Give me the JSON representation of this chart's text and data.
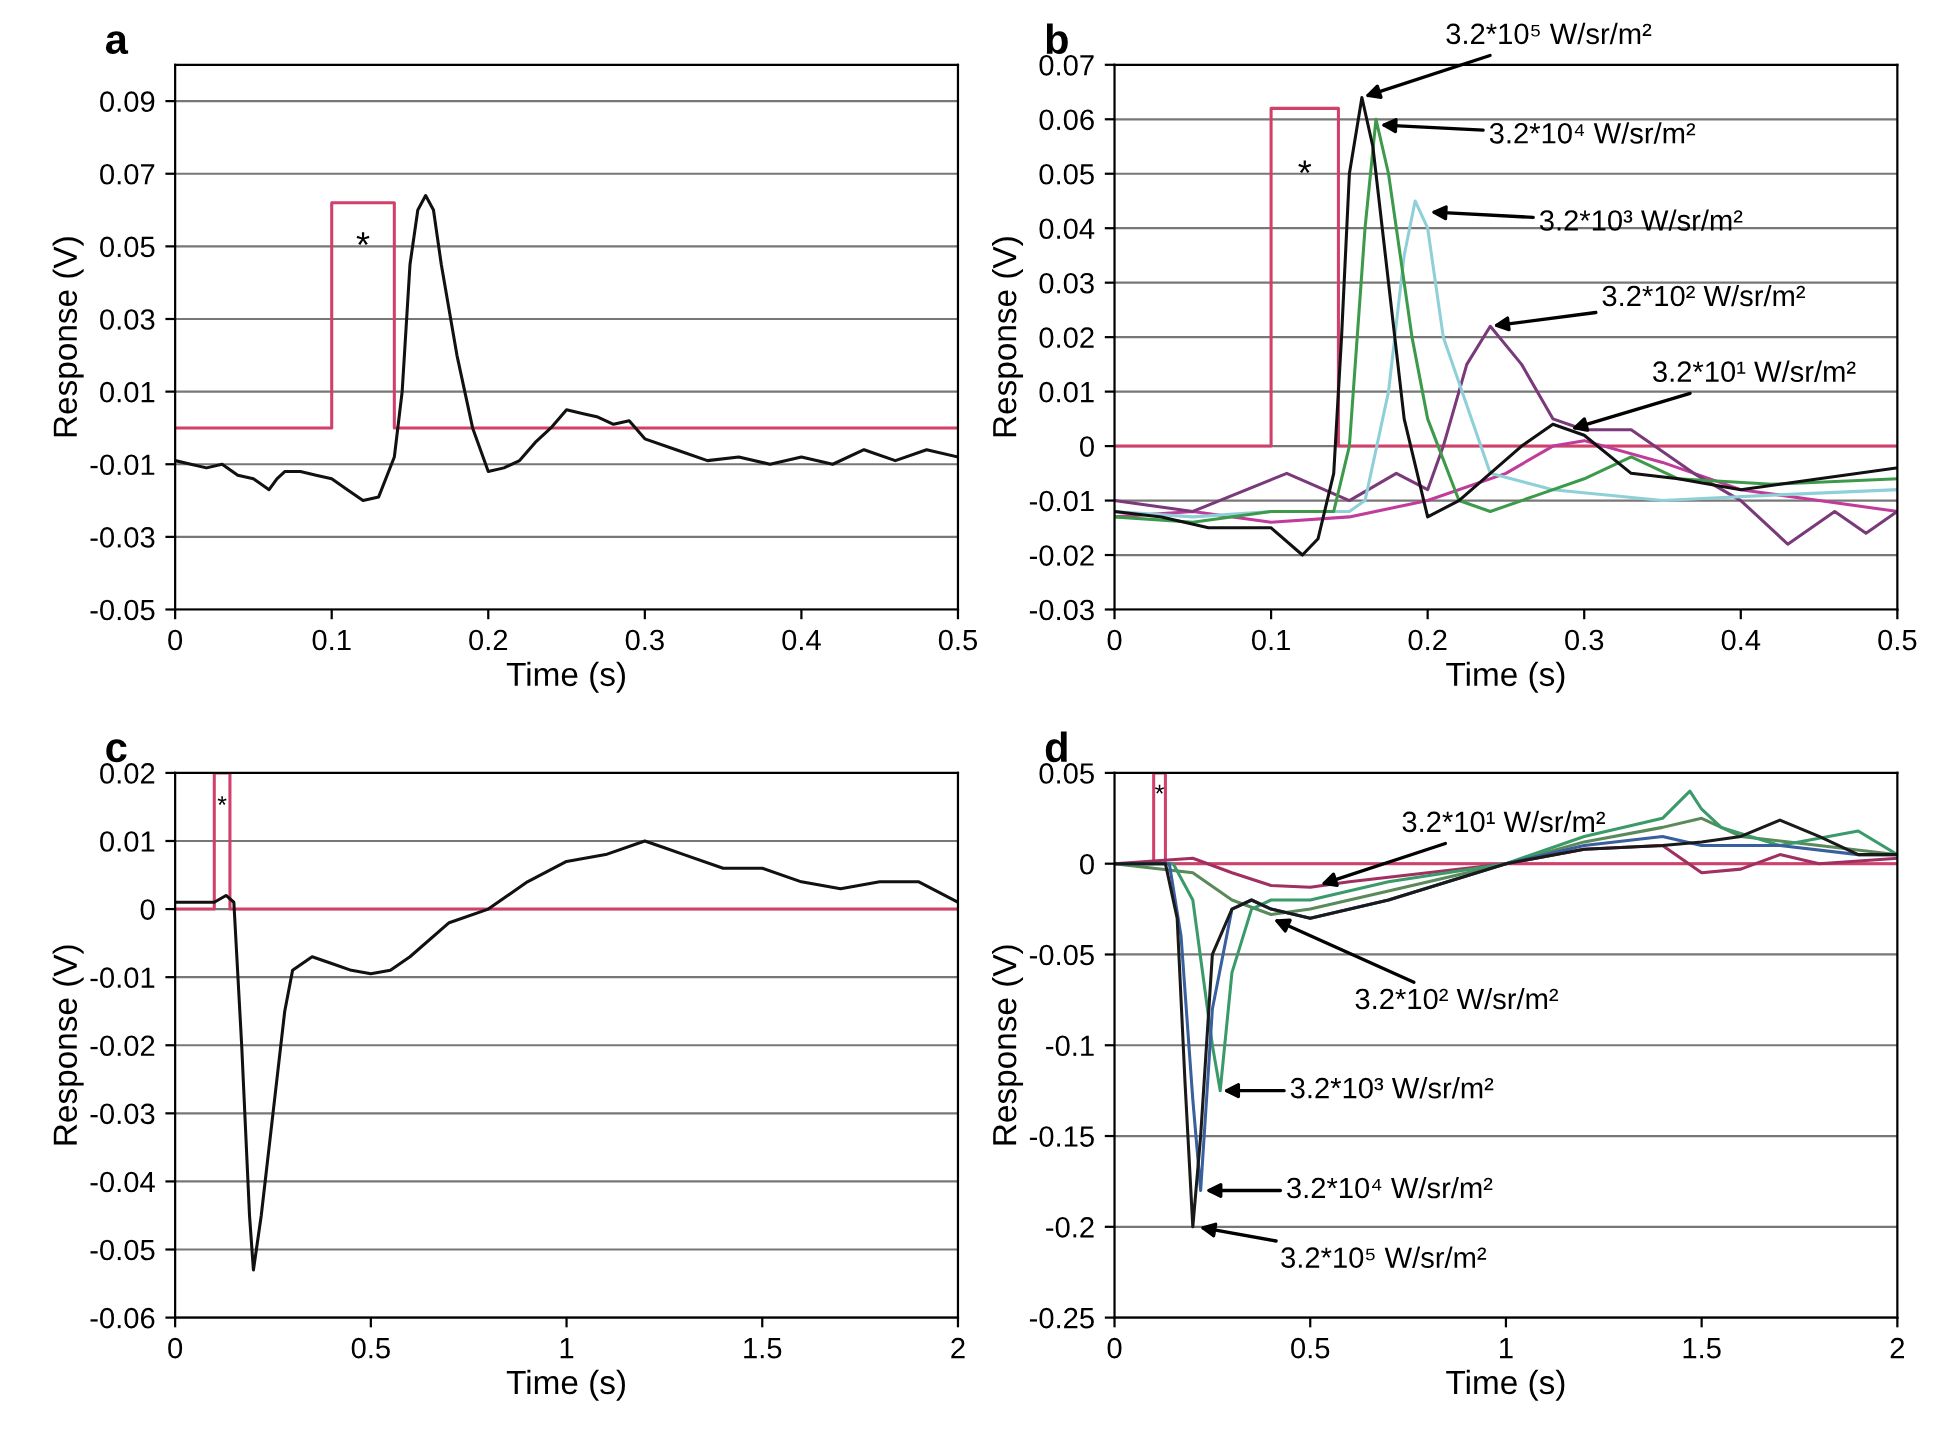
{
  "chart_data": [
    {
      "type": "line",
      "title": "a",
      "xlabel": "Time (s)",
      "ylabel": "Response (V)",
      "xlim": [
        0,
        0.5
      ],
      "ylim": [
        -0.05,
        0.1
      ],
      "xticks": [
        0,
        0.1,
        0.2,
        0.3,
        0.4,
        0.5
      ],
      "yticks": [
        -0.05,
        -0.03,
        -0.01,
        0.01,
        0.03,
        0.05,
        0.07,
        0.09
      ],
      "grid": "y",
      "legend": false,
      "series": [
        {
          "color": "#d0406a",
          "x": [
            0,
            0.1,
            0.1,
            0.14,
            0.14,
            0.5
          ],
          "values": [
            0,
            0,
            0.062,
            0.062,
            0,
            0
          ]
        },
        {
          "color": "#111111",
          "x": [
            0,
            0.01,
            0.02,
            0.03,
            0.04,
            0.05,
            0.06,
            0.065,
            0.07,
            0.08,
            0.09,
            0.1,
            0.11,
            0.12,
            0.13,
            0.14,
            0.145,
            0.15,
            0.155,
            0.16,
            0.165,
            0.17,
            0.18,
            0.19,
            0.2,
            0.21,
            0.22,
            0.23,
            0.24,
            0.25,
            0.26,
            0.27,
            0.28,
            0.29,
            0.3,
            0.32,
            0.34,
            0.36,
            0.38,
            0.4,
            0.42,
            0.44,
            0.46,
            0.48,
            0.5
          ],
          "values": [
            -0.009,
            -0.01,
            -0.011,
            -0.01,
            -0.013,
            -0.014,
            -0.017,
            -0.014,
            -0.012,
            -0.012,
            -0.013,
            -0.014,
            -0.017,
            -0.02,
            -0.019,
            -0.008,
            0.01,
            0.045,
            0.06,
            0.064,
            0.06,
            0.045,
            0.02,
            0.0,
            -0.012,
            -0.011,
            -0.009,
            -0.004,
            0.0,
            0.005,
            0.004,
            0.003,
            0.001,
            0.002,
            -0.003,
            -0.006,
            -0.009,
            -0.008,
            -0.01,
            -0.008,
            -0.01,
            -0.006,
            -0.009,
            -0.006,
            -0.008
          ]
        }
      ],
      "annotations": [
        "*"
      ]
    },
    {
      "type": "line",
      "title": "b",
      "xlabel": "Time (s)",
      "ylabel": "Response (V)",
      "xlim": [
        0,
        0.5
      ],
      "ylim": [
        -0.03,
        0.07
      ],
      "xticks": [
        0,
        0.1,
        0.2,
        0.3,
        0.4,
        0.5
      ],
      "yticks": [
        -0.03,
        -0.02,
        -0.01,
        0,
        0.01,
        0.02,
        0.03,
        0.04,
        0.05,
        0.06,
        0.07
      ],
      "grid": "y",
      "legend": false,
      "series": [
        {
          "color": "#d0406a",
          "x": [
            0,
            0.1,
            0.1,
            0.143,
            0.143,
            0.5
          ],
          "values": [
            0,
            0,
            0.062,
            0.062,
            0,
            0
          ]
        },
        {
          "color": "#c03c9a",
          "x": [
            0,
            0.05,
            0.1,
            0.15,
            0.2,
            0.25,
            0.28,
            0.3,
            0.35,
            0.4,
            0.45,
            0.5
          ],
          "values": [
            -0.013,
            -0.012,
            -0.014,
            -0.013,
            -0.01,
            -0.005,
            0.0,
            0.001,
            -0.003,
            -0.008,
            -0.01,
            -0.012
          ]
        },
        {
          "color": "#7a3a7a",
          "x": [
            0,
            0.05,
            0.11,
            0.15,
            0.18,
            0.2,
            0.21,
            0.225,
            0.24,
            0.26,
            0.28,
            0.3,
            0.33,
            0.37,
            0.4,
            0.43,
            0.46,
            0.48,
            0.5
          ],
          "values": [
            -0.01,
            -0.012,
            -0.005,
            -0.01,
            -0.005,
            -0.008,
            0.0,
            0.015,
            0.022,
            0.015,
            0.005,
            0.003,
            0.003,
            -0.005,
            -0.01,
            -0.018,
            -0.012,
            -0.016,
            -0.012
          ]
        },
        {
          "color": "#8fd0d8",
          "x": [
            0,
            0.05,
            0.1,
            0.15,
            0.16,
            0.175,
            0.185,
            0.192,
            0.2,
            0.21,
            0.24,
            0.28,
            0.35,
            0.42,
            0.5
          ],
          "values": [
            -0.012,
            -0.013,
            -0.012,
            -0.012,
            -0.01,
            0.01,
            0.035,
            0.045,
            0.04,
            0.02,
            -0.005,
            -0.008,
            -0.01,
            -0.009,
            -0.008
          ]
        },
        {
          "color": "#3c9a4a",
          "x": [
            0,
            0.05,
            0.1,
            0.14,
            0.15,
            0.16,
            0.167,
            0.175,
            0.19,
            0.2,
            0.22,
            0.24,
            0.27,
            0.3,
            0.33,
            0.36,
            0.42,
            0.5
          ],
          "values": [
            -0.013,
            -0.014,
            -0.012,
            -0.012,
            0.0,
            0.04,
            0.06,
            0.05,
            0.02,
            0.005,
            -0.01,
            -0.012,
            -0.009,
            -0.006,
            -0.002,
            -0.006,
            -0.007,
            -0.006
          ]
        },
        {
          "color": "#111111",
          "x": [
            0,
            0.03,
            0.06,
            0.1,
            0.12,
            0.13,
            0.14,
            0.145,
            0.15,
            0.158,
            0.165,
            0.175,
            0.185,
            0.2,
            0.22,
            0.24,
            0.26,
            0.28,
            0.3,
            0.33,
            0.36,
            0.4,
            0.45,
            0.5
          ],
          "values": [
            -0.012,
            -0.013,
            -0.015,
            -0.015,
            -0.02,
            -0.017,
            -0.005,
            0.02,
            0.05,
            0.064,
            0.055,
            0.03,
            0.005,
            -0.013,
            -0.01,
            -0.005,
            0.0,
            0.004,
            0.002,
            -0.005,
            -0.006,
            -0.008,
            -0.006,
            -0.004
          ]
        }
      ],
      "annotations": [
        "*",
        {
          "text": "3.2*10⁵ W/sr/m²",
          "x": 0.158,
          "y": 0.064
        },
        {
          "text": "3.2*10⁴ W/sr/m²",
          "x": 0.168,
          "y": 0.059
        },
        {
          "text": "3.2*10³ W/sr/m²",
          "x": 0.2,
          "y": 0.043
        },
        {
          "text": "3.2*10² W/sr/m²",
          "x": 0.24,
          "y": 0.022
        },
        {
          "text": "3.2*10¹ W/sr/m²",
          "x": 0.29,
          "y": 0.003
        }
      ]
    },
    {
      "type": "line",
      "title": "c",
      "xlabel": "Time (s)",
      "ylabel": "Response (V)",
      "xlim": [
        0,
        2
      ],
      "ylim": [
        -0.06,
        0.02
      ],
      "xticks": [
        0,
        0.5,
        1,
        1.5,
        2
      ],
      "yticks": [
        -0.06,
        -0.05,
        -0.04,
        -0.03,
        -0.02,
        -0.01,
        0,
        0.01,
        0.02
      ],
      "grid": "y",
      "legend": false,
      "series": [
        {
          "color": "#d0406a",
          "x": [
            0,
            0.1,
            0.1,
            0.14,
            0.14,
            2
          ],
          "values": [
            0,
            0,
            0.02,
            0.02,
            0,
            0
          ]
        },
        {
          "color": "#111111",
          "x": [
            0,
            0.1,
            0.13,
            0.15,
            0.17,
            0.19,
            0.2,
            0.22,
            0.25,
            0.28,
            0.3,
            0.35,
            0.4,
            0.45,
            0.5,
            0.55,
            0.6,
            0.7,
            0.8,
            0.9,
            1.0,
            1.1,
            1.2,
            1.25,
            1.3,
            1.4,
            1.5,
            1.6,
            1.7,
            1.8,
            1.9,
            2.0
          ],
          "values": [
            0.001,
            0.001,
            0.002,
            0.001,
            -0.02,
            -0.045,
            -0.053,
            -0.045,
            -0.03,
            -0.015,
            -0.009,
            -0.007,
            -0.008,
            -0.009,
            -0.0095,
            -0.009,
            -0.007,
            -0.002,
            0.0,
            0.004,
            0.007,
            0.008,
            0.01,
            0.009,
            0.008,
            0.006,
            0.006,
            0.004,
            0.003,
            0.004,
            0.004,
            0.001
          ]
        }
      ],
      "annotations": [
        "*"
      ]
    },
    {
      "type": "line",
      "title": "d",
      "xlabel": "Time (s)",
      "ylabel": "Response (V)",
      "xlim": [
        0,
        2
      ],
      "ylim": [
        -0.25,
        0.05
      ],
      "xticks": [
        0,
        0.5,
        1,
        1.5,
        2
      ],
      "yticks": [
        -0.25,
        -0.2,
        -0.15,
        -0.1,
        -0.05,
        0,
        0.05
      ],
      "grid": "y",
      "legend": false,
      "series": [
        {
          "color": "#d0406a",
          "x": [
            0,
            0.1,
            0.1,
            0.13,
            0.13,
            2
          ],
          "values": [
            0,
            0,
            0.05,
            0.05,
            0,
            0
          ]
        },
        {
          "color": "#a03060",
          "x": [
            0,
            0.2,
            0.3,
            0.4,
            0.5,
            0.6,
            0.8,
            1.0,
            1.2,
            1.4,
            1.5,
            1.6,
            1.7,
            1.8,
            2.0
          ],
          "values": [
            0,
            0.003,
            -0.005,
            -0.012,
            -0.013,
            -0.01,
            -0.005,
            0.0,
            0.008,
            0.01,
            -0.005,
            -0.003,
            0.005,
            0.0,
            0.003
          ]
        },
        {
          "color": "#5a8a5a",
          "x": [
            0,
            0.2,
            0.3,
            0.4,
            0.5,
            0.7,
            1.0,
            1.2,
            1.4,
            1.5,
            1.6,
            1.8,
            2.0
          ],
          "values": [
            0,
            -0.005,
            -0.02,
            -0.028,
            -0.025,
            -0.015,
            0.0,
            0.012,
            0.02,
            0.025,
            0.015,
            0.01,
            0.005
          ]
        },
        {
          "color": "#3a9a6a",
          "x": [
            0,
            0.15,
            0.2,
            0.25,
            0.27,
            0.3,
            0.35,
            0.4,
            0.5,
            0.7,
            1.0,
            1.2,
            1.4,
            1.47,
            1.5,
            1.55,
            1.7,
            1.9,
            2.0
          ],
          "values": [
            0,
            0,
            -0.02,
            -0.1,
            -0.125,
            -0.06,
            -0.025,
            -0.02,
            -0.02,
            -0.01,
            0.0,
            0.015,
            0.025,
            0.04,
            0.03,
            0.02,
            0.01,
            0.018,
            0.005
          ]
        },
        {
          "color": "#3a5f9f",
          "x": [
            0,
            0.14,
            0.17,
            0.2,
            0.22,
            0.25,
            0.3,
            0.35,
            0.4,
            0.5,
            0.7,
            1.0,
            1.2,
            1.4,
            1.5,
            1.7,
            1.9,
            2.0
          ],
          "values": [
            0,
            0,
            -0.04,
            -0.13,
            -0.18,
            -0.08,
            -0.025,
            -0.02,
            -0.025,
            -0.03,
            -0.02,
            0.0,
            0.01,
            0.015,
            0.01,
            0.01,
            0.005,
            0.005
          ]
        },
        {
          "color": "#1a1a1a",
          "x": [
            0,
            0.13,
            0.16,
            0.18,
            0.2,
            0.22,
            0.25,
            0.3,
            0.35,
            0.4,
            0.5,
            0.7,
            1.0,
            1.2,
            1.4,
            1.5,
            1.6,
            1.7,
            1.8,
            1.9,
            2.0
          ],
          "values": [
            0,
            0,
            -0.03,
            -0.12,
            -0.2,
            -0.15,
            -0.05,
            -0.025,
            -0.02,
            -0.025,
            -0.03,
            -0.02,
            0.0,
            0.008,
            0.01,
            0.012,
            0.015,
            0.024,
            0.015,
            0.005,
            0.005
          ]
        }
      ],
      "annotations": [
        "*",
        {
          "text": "3.2*10¹ W/sr/m²",
          "x": 0.52,
          "y": -0.012
        },
        {
          "text": "3.2*10² W/sr/m²",
          "x": 0.4,
          "y": -0.03
        },
        {
          "text": "3.2*10³ W/sr/m²",
          "x": 0.27,
          "y": -0.125
        },
        {
          "text": "3.2*10⁴ W/sr/m²",
          "x": 0.225,
          "y": -0.18
        },
        {
          "text": "3.2*10⁵ W/sr/m²",
          "x": 0.21,
          "y": -0.2
        }
      ]
    }
  ]
}
